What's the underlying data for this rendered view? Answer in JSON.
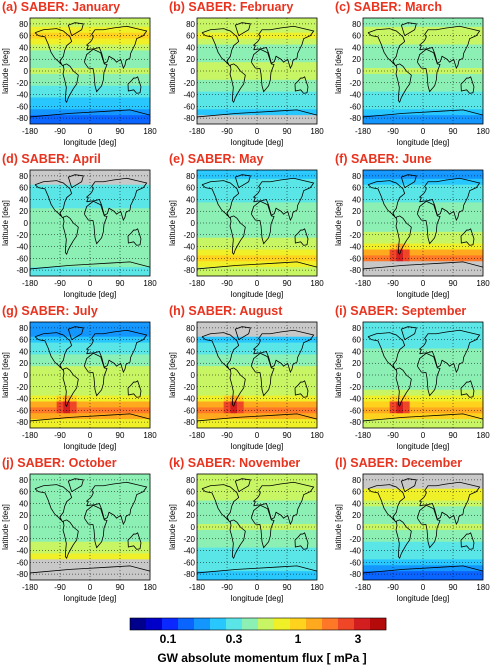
{
  "figure": {
    "colorbar": {
      "label": "GW absolute momentum flux   [ mPa ]",
      "ticks": [
        "0.1",
        "0.3",
        "1",
        "3"
      ],
      "colors": [
        "#00008c",
        "#0000c8",
        "#0a28ff",
        "#0a64ff",
        "#1496ff",
        "#28c8ff",
        "#5ae6e6",
        "#8cf0b4",
        "#c8f564",
        "#f0f028",
        "#ffd21e",
        "#ffaa1e",
        "#ff7828",
        "#f04628",
        "#d21e1e",
        "#b40a0a"
      ]
    },
    "axes": {
      "xlabel": "longitude [deg]",
      "ylabel": "latitude [deg]",
      "xticks": [
        "-180",
        "-90",
        "0",
        "90",
        "180"
      ],
      "yticks": [
        "80",
        "60",
        "40",
        "20",
        "0",
        "-20",
        "-40",
        "-60",
        "-80"
      ]
    }
  },
  "chart_data": [
    {
      "type": "heatmap",
      "title": "(a) SABER: January",
      "xlabel": "longitude [deg]",
      "ylabel": "latitude [deg]",
      "xlim": [
        -180,
        180
      ],
      "ylim": [
        -90,
        90
      ],
      "latitude_band_centers": [
        80,
        70,
        60,
        50,
        40,
        30,
        20,
        10,
        0,
        -10,
        -20,
        -30,
        -40,
        -50,
        -60,
        -70,
        -80
      ],
      "zonal_mean_mPa": [
        0.6,
        0.8,
        1.0,
        0.85,
        0.55,
        0.45,
        0.4,
        0.45,
        0.5,
        0.45,
        0.4,
        0.35,
        0.3,
        0.25,
        0.25,
        0.2,
        0.15
      ],
      "no_data_regions": []
    },
    {
      "type": "heatmap",
      "title": "(b) SABER: February",
      "xlabel": "longitude [deg]",
      "ylabel": "latitude [deg]",
      "xlim": [
        -180,
        180
      ],
      "ylim": [
        -90,
        90
      ],
      "latitude_band_centers": [
        80,
        70,
        60,
        50,
        40,
        30,
        20,
        10,
        0,
        -10,
        -20,
        -30,
        -40,
        -50,
        -60,
        -70,
        -80
      ],
      "zonal_mean_mPa": [
        0.5,
        0.6,
        0.65,
        0.6,
        0.45,
        0.4,
        0.4,
        0.5,
        0.55,
        0.5,
        0.45,
        0.4,
        0.35,
        0.3,
        0.3,
        0.25,
        null
      ],
      "no_data_regions": [
        "south of -70"
      ]
    },
    {
      "type": "heatmap",
      "title": "(c) SABER: March",
      "xlabel": "longitude [deg]",
      "ylabel": "latitude [deg]",
      "xlim": [
        -180,
        180
      ],
      "ylim": [
        -90,
        90
      ],
      "latitude_band_centers": [
        80,
        70,
        60,
        50,
        40,
        30,
        20,
        10,
        0,
        -10,
        -20,
        -30,
        -40,
        -50,
        -60,
        -70,
        -80
      ],
      "zonal_mean_mPa": [
        0.45,
        0.5,
        0.55,
        0.5,
        0.45,
        0.4,
        0.4,
        0.45,
        0.5,
        0.45,
        0.4,
        0.4,
        0.35,
        0.35,
        0.3,
        0.25,
        0.2
      ],
      "no_data_regions": []
    },
    {
      "type": "heatmap",
      "title": "(d) SABER: April",
      "xlabel": "longitude [deg]",
      "ylabel": "latitude [deg]",
      "xlim": [
        -180,
        180
      ],
      "ylim": [
        -90,
        90
      ],
      "latitude_band_centers": [
        80,
        70,
        60,
        50,
        40,
        30,
        20,
        10,
        0,
        -10,
        -20,
        -30,
        -40,
        -50,
        -60,
        -70,
        -80
      ],
      "zonal_mean_mPa": [
        null,
        null,
        0.3,
        0.3,
        0.35,
        0.35,
        0.4,
        0.45,
        0.45,
        0.45,
        0.4,
        0.4,
        0.4,
        0.4,
        0.45,
        0.4,
        0.35
      ],
      "no_data_regions": [
        "north of 60"
      ]
    },
    {
      "type": "heatmap",
      "title": "(e) SABER: May",
      "xlabel": "longitude [deg]",
      "ylabel": "latitude [deg]",
      "xlim": [
        -180,
        180
      ],
      "ylim": [
        -90,
        90
      ],
      "latitude_band_centers": [
        80,
        70,
        60,
        50,
        40,
        30,
        20,
        10,
        0,
        -10,
        -20,
        -30,
        -40,
        -50,
        -60,
        -70,
        -80
      ],
      "zonal_mean_mPa": [
        0.25,
        0.3,
        0.3,
        0.3,
        0.35,
        0.4,
        0.4,
        0.45,
        0.45,
        0.45,
        0.45,
        0.5,
        0.6,
        0.75,
        0.9,
        0.8,
        0.5
      ],
      "no_data_regions": []
    },
    {
      "type": "heatmap",
      "title": "(f) SABER: June",
      "xlabel": "longitude [deg]",
      "ylabel": "latitude [deg]",
      "xlim": [
        -180,
        180
      ],
      "ylim": [
        -90,
        90
      ],
      "latitude_band_centers": [
        80,
        70,
        60,
        50,
        40,
        30,
        20,
        10,
        0,
        -10,
        -20,
        -30,
        -40,
        -50,
        -60,
        -70,
        -80
      ],
      "zonal_mean_mPa": [
        0.2,
        0.25,
        0.3,
        0.3,
        0.35,
        0.4,
        0.45,
        0.45,
        0.45,
        0.45,
        0.5,
        0.55,
        0.7,
        1.2,
        1.7,
        null,
        null
      ],
      "peak": {
        "lon": -70,
        "lat": -55,
        "value_mPa": 3.5
      },
      "no_data_regions": [
        "south of -65"
      ]
    },
    {
      "type": "heatmap",
      "title": "(g) SABER: July",
      "xlabel": "longitude [deg]",
      "ylabel": "latitude [deg]",
      "xlim": [
        -180,
        180
      ],
      "ylim": [
        -90,
        90
      ],
      "latitude_band_centers": [
        80,
        70,
        60,
        50,
        40,
        30,
        20,
        10,
        0,
        -10,
        -20,
        -30,
        -40,
        -50,
        -60,
        -70,
        -80
      ],
      "zonal_mean_mPa": [
        0.2,
        0.2,
        0.25,
        0.3,
        0.35,
        0.4,
        0.45,
        0.5,
        0.5,
        0.5,
        0.5,
        0.55,
        0.75,
        1.3,
        1.8,
        1.2,
        0.7
      ],
      "peak": {
        "lon": -70,
        "lat": -55,
        "value_mPa": 3.5
      },
      "no_data_regions": []
    },
    {
      "type": "heatmap",
      "title": "(h) SABER: August",
      "xlabel": "longitude [deg]",
      "ylabel": "latitude [deg]",
      "xlim": [
        -180,
        180
      ],
      "ylim": [
        -90,
        90
      ],
      "latitude_band_centers": [
        80,
        70,
        60,
        50,
        40,
        30,
        20,
        10,
        0,
        -10,
        -20,
        -30,
        -40,
        -50,
        -60,
        -70,
        -80
      ],
      "zonal_mean_mPa": [
        null,
        null,
        0.25,
        0.3,
        0.35,
        0.4,
        0.45,
        0.5,
        0.5,
        0.5,
        0.5,
        0.55,
        0.75,
        1.3,
        1.9,
        1.3,
        0.7
      ],
      "peak": {
        "lon": -70,
        "lat": -55,
        "value_mPa": 3.5
      },
      "no_data_regions": [
        "north of 60"
      ]
    },
    {
      "type": "heatmap",
      "title": "(i) SABER: September",
      "xlabel": "longitude [deg]",
      "ylabel": "latitude [deg]",
      "xlim": [
        -180,
        180
      ],
      "ylim": [
        -90,
        90
      ],
      "latitude_band_centers": [
        80,
        70,
        60,
        50,
        40,
        30,
        20,
        10,
        0,
        -10,
        -20,
        -30,
        -40,
        -50,
        -60,
        -70,
        -80
      ],
      "zonal_mean_mPa": [
        0.3,
        0.3,
        0.35,
        0.35,
        0.4,
        0.4,
        0.45,
        0.45,
        0.45,
        0.45,
        0.45,
        0.5,
        0.65,
        0.95,
        1.3,
        0.9,
        0.5
      ],
      "peak": {
        "lon": -70,
        "lat": -55,
        "value_mPa": 3.0
      },
      "no_data_regions": []
    },
    {
      "type": "heatmap",
      "title": "(j) SABER: October",
      "xlabel": "longitude [deg]",
      "ylabel": "latitude [deg]",
      "xlim": [
        -180,
        180
      ],
      "ylim": [
        -90,
        90
      ],
      "latitude_band_centers": [
        80,
        70,
        60,
        50,
        40,
        30,
        20,
        10,
        0,
        -10,
        -20,
        -30,
        -40,
        -50,
        -60,
        -70,
        -80
      ],
      "zonal_mean_mPa": [
        0.4,
        0.4,
        0.4,
        0.4,
        0.4,
        0.4,
        0.45,
        0.45,
        0.45,
        0.45,
        0.45,
        0.5,
        0.6,
        0.7,
        null,
        null,
        null
      ],
      "no_data_regions": [
        "south of -60"
      ]
    },
    {
      "type": "heatmap",
      "title": "(k) SABER: November",
      "xlabel": "longitude [deg]",
      "ylabel": "latitude [deg]",
      "xlim": [
        -180,
        180
      ],
      "ylim": [
        -90,
        90
      ],
      "latitude_band_centers": [
        80,
        70,
        60,
        50,
        40,
        30,
        20,
        10,
        0,
        -10,
        -20,
        -30,
        -40,
        -50,
        -60,
        -70,
        -80
      ],
      "zonal_mean_mPa": [
        0.5,
        0.55,
        0.6,
        0.55,
        0.45,
        0.4,
        0.4,
        0.45,
        0.5,
        0.45,
        0.4,
        0.4,
        0.35,
        0.35,
        0.3,
        0.3,
        0.25
      ],
      "no_data_regions": []
    },
    {
      "type": "heatmap",
      "title": "(l) SABER: December",
      "xlabel": "longitude [deg]",
      "ylabel": "latitude [deg]",
      "xlim": [
        -180,
        180
      ],
      "ylim": [
        -90,
        90
      ],
      "latitude_band_centers": [
        80,
        70,
        60,
        50,
        40,
        30,
        20,
        10,
        0,
        -10,
        -20,
        -30,
        -40,
        -50,
        -60,
        -70,
        -80
      ],
      "zonal_mean_mPa": [
        null,
        null,
        0.75,
        0.7,
        0.5,
        0.4,
        0.4,
        0.45,
        0.5,
        0.45,
        0.4,
        0.35,
        0.3,
        0.3,
        0.25,
        0.2,
        0.15
      ],
      "no_data_regions": [
        "north of 60"
      ]
    }
  ]
}
